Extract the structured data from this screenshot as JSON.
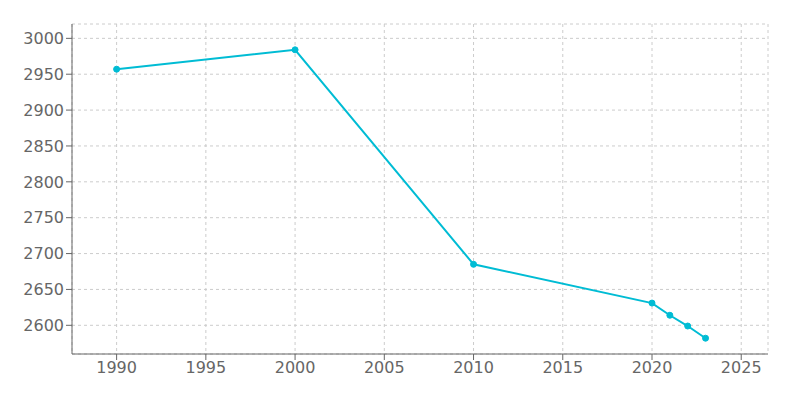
{
  "chart_data": {
    "type": "line",
    "x": [
      1990,
      2000,
      2010,
      2020,
      2021,
      2022,
      2023
    ],
    "values": [
      2957,
      2984,
      2685,
      2631,
      2614,
      2599,
      2582
    ],
    "color": "#00BCD4",
    "marker": "circle",
    "xlim": [
      1987.5,
      2026.5
    ],
    "ylim": [
      2560,
      3020
    ],
    "xticks": [
      1990,
      1995,
      2000,
      2005,
      2010,
      2015,
      2020,
      2025
    ],
    "yticks": [
      2600,
      2650,
      2700,
      2750,
      2800,
      2850,
      2900,
      2950,
      3000
    ],
    "grid": true
  }
}
